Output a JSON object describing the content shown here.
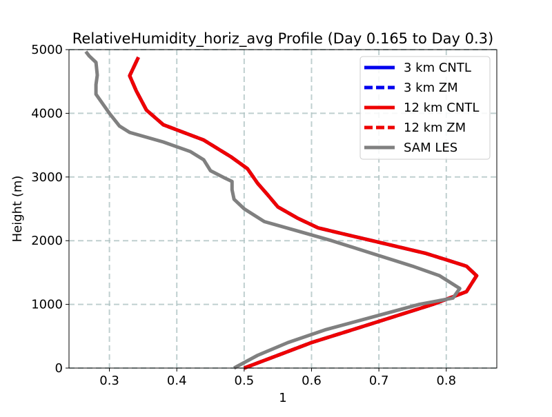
{
  "chart_data": {
    "type": "line",
    "title": "RelativeHumidity_horiz_avg Profile (Day 0.165 to Day 0.3)",
    "xlabel": "1",
    "ylabel": "Height (m)",
    "xlim": [
      0.24,
      0.875
    ],
    "ylim": [
      0,
      5000
    ],
    "xticks": [
      0.3,
      0.4,
      0.5,
      0.6,
      0.7,
      0.8
    ],
    "xtick_labels": [
      "0.3",
      "0.4",
      "0.5",
      "0.6",
      "0.7",
      "0.8"
    ],
    "yticks": [
      0,
      1000,
      2000,
      3000,
      4000,
      5000
    ],
    "ytick_labels": [
      "0",
      "1000",
      "2000",
      "3000",
      "4000",
      "5000"
    ],
    "grid": true,
    "legend_position": "top-right",
    "series": [
      {
        "name": "3 km CNTL",
        "color": "#0000ee",
        "style": "solid",
        "points": [
          [
            0.5,
            0
          ],
          [
            0.55,
            200
          ],
          [
            0.6,
            400
          ],
          [
            0.66,
            600
          ],
          [
            0.72,
            800
          ],
          [
            0.78,
            1000
          ],
          [
            0.83,
            1200
          ],
          [
            0.845,
            1450
          ],
          [
            0.83,
            1600
          ],
          [
            0.8,
            1700
          ],
          [
            0.77,
            1800
          ],
          [
            0.73,
            1900
          ],
          [
            0.69,
            2000
          ],
          [
            0.65,
            2100
          ],
          [
            0.61,
            2200
          ],
          [
            0.58,
            2350
          ],
          [
            0.55,
            2530
          ],
          [
            0.535,
            2720
          ],
          [
            0.52,
            2900
          ],
          [
            0.505,
            3130
          ],
          [
            0.48,
            3320
          ],
          [
            0.44,
            3580
          ],
          [
            0.38,
            3820
          ],
          [
            0.355,
            4050
          ],
          [
            0.34,
            4350
          ],
          [
            0.33,
            4590
          ],
          [
            0.343,
            4880
          ]
        ]
      },
      {
        "name": "3 km ZM",
        "color": "#0000ee",
        "style": "dashed",
        "points": [
          [
            0.5,
            0
          ],
          [
            0.55,
            200
          ],
          [
            0.6,
            400
          ],
          [
            0.66,
            600
          ],
          [
            0.72,
            800
          ],
          [
            0.78,
            1000
          ],
          [
            0.83,
            1200
          ],
          [
            0.845,
            1450
          ],
          [
            0.83,
            1600
          ],
          [
            0.8,
            1700
          ],
          [
            0.77,
            1800
          ],
          [
            0.73,
            1900
          ],
          [
            0.69,
            2000
          ],
          [
            0.65,
            2100
          ],
          [
            0.61,
            2200
          ],
          [
            0.58,
            2350
          ],
          [
            0.55,
            2530
          ],
          [
            0.535,
            2720
          ],
          [
            0.52,
            2900
          ],
          [
            0.505,
            3130
          ],
          [
            0.48,
            3320
          ],
          [
            0.44,
            3580
          ],
          [
            0.38,
            3820
          ],
          [
            0.355,
            4050
          ],
          [
            0.34,
            4350
          ],
          [
            0.33,
            4590
          ],
          [
            0.343,
            4880
          ]
        ]
      },
      {
        "name": "12 km CNTL",
        "color": "#ee0000",
        "style": "solid",
        "points": [
          [
            0.5,
            0
          ],
          [
            0.55,
            200
          ],
          [
            0.6,
            400
          ],
          [
            0.66,
            600
          ],
          [
            0.72,
            800
          ],
          [
            0.78,
            1000
          ],
          [
            0.83,
            1200
          ],
          [
            0.845,
            1450
          ],
          [
            0.83,
            1600
          ],
          [
            0.8,
            1700
          ],
          [
            0.77,
            1800
          ],
          [
            0.73,
            1900
          ],
          [
            0.69,
            2000
          ],
          [
            0.65,
            2100
          ],
          [
            0.61,
            2200
          ],
          [
            0.58,
            2350
          ],
          [
            0.55,
            2530
          ],
          [
            0.535,
            2720
          ],
          [
            0.52,
            2900
          ],
          [
            0.505,
            3130
          ],
          [
            0.48,
            3320
          ],
          [
            0.44,
            3580
          ],
          [
            0.38,
            3820
          ],
          [
            0.355,
            4050
          ],
          [
            0.34,
            4350
          ],
          [
            0.33,
            4590
          ],
          [
            0.343,
            4880
          ]
        ]
      },
      {
        "name": "12 km ZM",
        "color": "#ee0000",
        "style": "dashed",
        "points": [
          [
            0.5,
            0
          ],
          [
            0.55,
            200
          ],
          [
            0.6,
            400
          ],
          [
            0.66,
            600
          ],
          [
            0.72,
            800
          ],
          [
            0.78,
            1000
          ],
          [
            0.83,
            1200
          ],
          [
            0.845,
            1450
          ],
          [
            0.83,
            1600
          ],
          [
            0.8,
            1700
          ],
          [
            0.77,
            1800
          ],
          [
            0.73,
            1900
          ],
          [
            0.69,
            2000
          ],
          [
            0.65,
            2100
          ],
          [
            0.61,
            2200
          ],
          [
            0.58,
            2350
          ],
          [
            0.55,
            2530
          ],
          [
            0.535,
            2720
          ],
          [
            0.52,
            2900
          ],
          [
            0.505,
            3130
          ],
          [
            0.48,
            3320
          ],
          [
            0.44,
            3580
          ],
          [
            0.38,
            3820
          ],
          [
            0.355,
            4050
          ],
          [
            0.34,
            4350
          ],
          [
            0.33,
            4590
          ],
          [
            0.343,
            4880
          ]
        ]
      },
      {
        "name": "SAM LES",
        "color": "#808080",
        "style": "solid",
        "points": [
          [
            0.485,
            0
          ],
          [
            0.52,
            200
          ],
          [
            0.565,
            400
          ],
          [
            0.62,
            600
          ],
          [
            0.69,
            800
          ],
          [
            0.76,
            1000
          ],
          [
            0.81,
            1100
          ],
          [
            0.82,
            1250
          ],
          [
            0.79,
            1450
          ],
          [
            0.75,
            1600
          ],
          [
            0.69,
            1800
          ],
          [
            0.63,
            2000
          ],
          [
            0.58,
            2150
          ],
          [
            0.53,
            2300
          ],
          [
            0.5,
            2500
          ],
          [
            0.485,
            2650
          ],
          [
            0.482,
            2800
          ],
          [
            0.482,
            2930
          ],
          [
            0.47,
            2990
          ],
          [
            0.45,
            3100
          ],
          [
            0.44,
            3270
          ],
          [
            0.42,
            3400
          ],
          [
            0.38,
            3550
          ],
          [
            0.33,
            3700
          ],
          [
            0.315,
            3800
          ],
          [
            0.3,
            4000
          ],
          [
            0.28,
            4300
          ],
          [
            0.28,
            4450
          ],
          [
            0.282,
            4600
          ],
          [
            0.28,
            4800
          ],
          [
            0.27,
            4900
          ],
          [
            0.265,
            4970
          ]
        ]
      }
    ]
  }
}
